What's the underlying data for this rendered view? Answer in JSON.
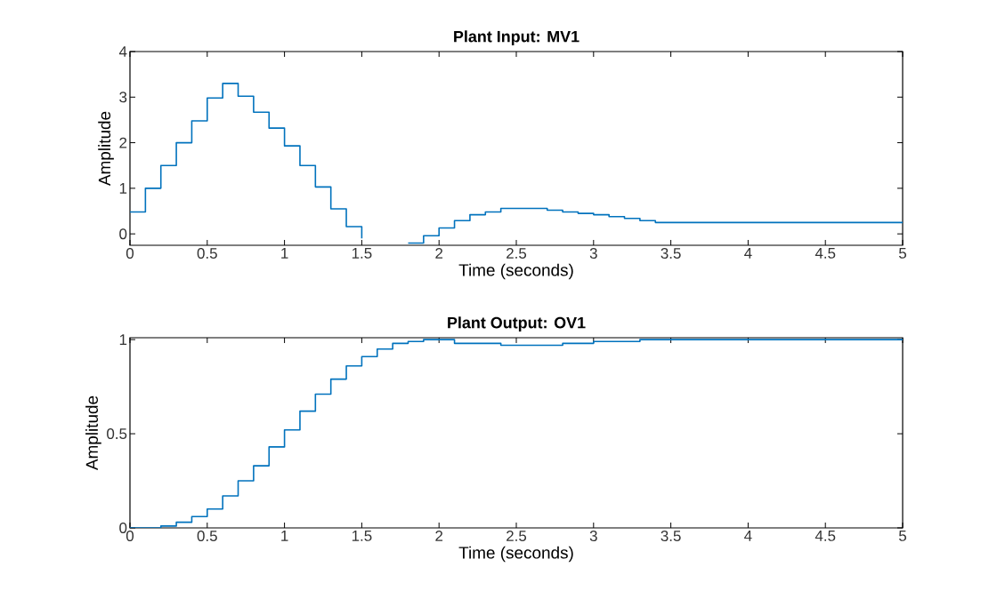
{
  "chart_data": [
    {
      "type": "step",
      "title": "Plant Input: MV1",
      "xlabel": "Time (seconds)",
      "ylabel": "Amplitude",
      "x": [
        0,
        0.1,
        0.2,
        0.3,
        0.4,
        0.5,
        0.6,
        0.7,
        0.8,
        0.9,
        1.0,
        1.1,
        1.2,
        1.3,
        1.4,
        1.5,
        1.6,
        1.7,
        1.8,
        1.9,
        2.0,
        2.1,
        2.2,
        2.3,
        2.4,
        2.5,
        2.6,
        2.7,
        2.8,
        2.9,
        3.0,
        3.1,
        3.2,
        3.3,
        3.4,
        5
      ],
      "series": [
        {
          "color": "#0072bd",
          "values": [
            0.48,
            1.0,
            1.5,
            2.0,
            2.48,
            2.98,
            3.3,
            3.02,
            2.67,
            2.32,
            1.93,
            1.5,
            1.03,
            0.55,
            0.16,
            -0.1,
            null,
            null,
            -0.2,
            -0.04,
            0.13,
            0.29,
            0.42,
            0.48,
            0.56,
            0.56,
            0.56,
            0.52,
            0.48,
            0.45,
            0.42,
            0.38,
            0.34,
            0.29,
            0.25,
            0.25
          ]
        }
      ],
      "xlim": [
        0,
        5
      ],
      "ylim": [
        -0.25,
        4
      ],
      "xticks": [
        0,
        0.5,
        1,
        1.5,
        2,
        2.5,
        3,
        3.5,
        4,
        4.5,
        5
      ],
      "yticks": [
        0,
        1,
        2,
        3,
        4
      ],
      "grid": false
    },
    {
      "type": "step",
      "title": "Plant Output: OV1",
      "xlabel": "Time (seconds)",
      "ylabel": "Amplitude",
      "x": [
        0,
        0.1,
        0.2,
        0.3,
        0.4,
        0.5,
        0.6,
        0.7,
        0.8,
        0.9,
        1.0,
        1.1,
        1.2,
        1.3,
        1.4,
        1.5,
        1.6,
        1.7,
        1.8,
        1.9,
        2.0,
        2.1,
        2.2,
        2.3,
        2.4,
        2.5,
        2.6,
        2.7,
        2.8,
        2.9,
        3.0,
        3.1,
        3.2,
        3.3,
        3.4,
        3.5,
        3.6,
        5
      ],
      "series": [
        {
          "color": "#0072bd",
          "values": [
            0,
            0,
            0.01,
            0.03,
            0.06,
            0.1,
            0.17,
            0.25,
            0.33,
            0.43,
            0.52,
            0.62,
            0.71,
            0.79,
            0.86,
            0.91,
            0.95,
            0.98,
            0.99,
            1.0,
            1.0,
            0.98,
            0.98,
            0.98,
            0.97,
            0.97,
            0.97,
            0.97,
            0.98,
            0.98,
            0.99,
            0.99,
            0.99,
            1.0,
            1.0,
            1.0,
            1.0,
            1.0
          ]
        }
      ],
      "xlim": [
        0,
        5
      ],
      "ylim": [
        0,
        1.01
      ],
      "xticks": [
        0,
        0.5,
        1,
        1.5,
        2,
        2.5,
        3,
        3.5,
        4,
        4.5,
        5
      ],
      "yticks": [
        0,
        0.5,
        1
      ],
      "grid": false
    }
  ]
}
